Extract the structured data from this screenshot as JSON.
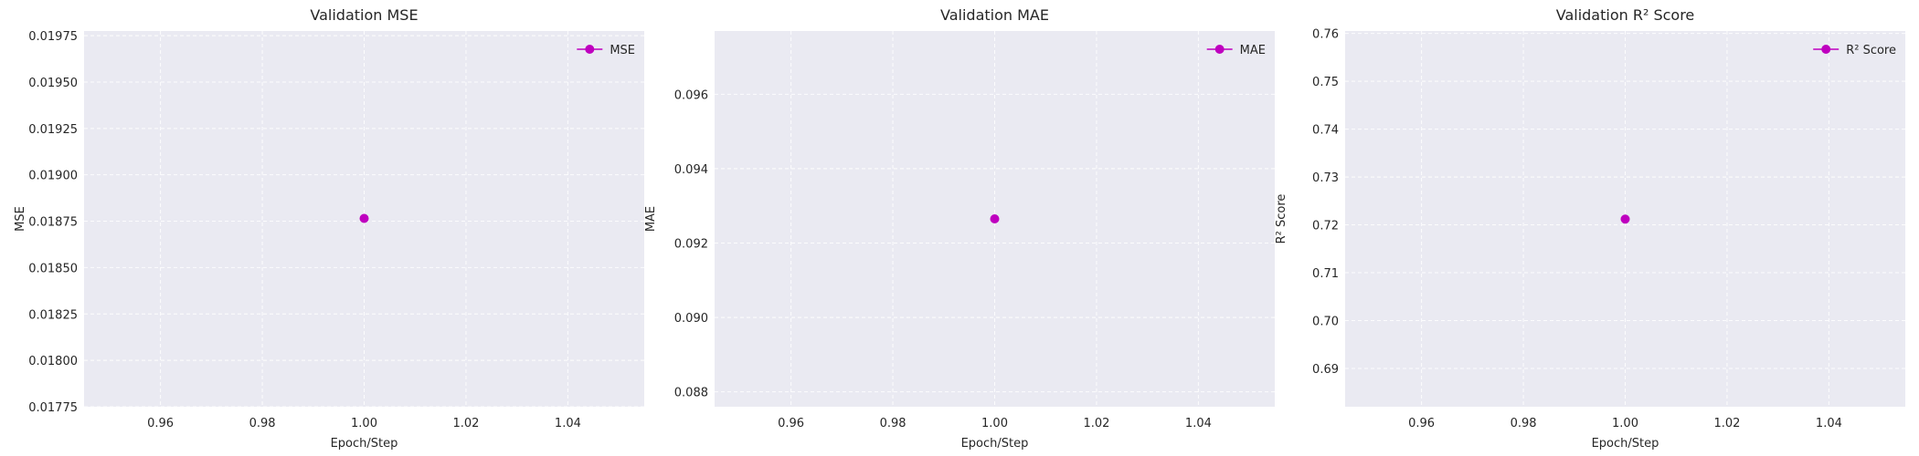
{
  "chart_data": [
    {
      "type": "line",
      "title": "Validation MSE",
      "xlabel": "Epoch/Step",
      "ylabel": "MSE",
      "xlim": [
        0.945,
        1.055
      ],
      "ylim": [
        0.01775,
        0.019775
      ],
      "xticks": [
        "0.96",
        "0.98",
        "1.00",
        "1.02",
        "1.04"
      ],
      "yticks": [
        "0.01775",
        "0.01800",
        "0.01825",
        "0.01850",
        "0.01875",
        "0.01900",
        "0.01925",
        "0.01950",
        "0.01975"
      ],
      "grid": true,
      "legend_position": "top-right",
      "series": [
        {
          "name": "MSE",
          "color": "#bf00bf",
          "marker": "circle",
          "x": [
            1.0
          ],
          "y": [
            0.018765
          ]
        }
      ]
    },
    {
      "type": "line",
      "title": "Validation MAE",
      "xlabel": "Epoch/Step",
      "ylabel": "MAE",
      "xlim": [
        0.945,
        1.055
      ],
      "ylim": [
        0.0876,
        0.0977
      ],
      "xticks": [
        "0.96",
        "0.98",
        "1.00",
        "1.02",
        "1.04"
      ],
      "yticks": [
        "0.088",
        "0.090",
        "0.092",
        "0.094",
        "0.096"
      ],
      "grid": true,
      "legend_position": "top-right",
      "series": [
        {
          "name": "MAE",
          "color": "#bf00bf",
          "marker": "circle",
          "x": [
            1.0
          ],
          "y": [
            0.09265
          ]
        }
      ]
    },
    {
      "type": "line",
      "title": "Validation R² Score",
      "xlabel": "Epoch/Step",
      "ylabel": "R² Score",
      "xlim": [
        0.945,
        1.055
      ],
      "ylim": [
        0.682,
        0.7605
      ],
      "xticks": [
        "0.96",
        "0.98",
        "1.00",
        "1.02",
        "1.04"
      ],
      "yticks": [
        "0.69",
        "0.70",
        "0.71",
        "0.72",
        "0.73",
        "0.74",
        "0.75",
        "0.76"
      ],
      "grid": true,
      "legend_position": "top-right",
      "series": [
        {
          "name": "R² Score",
          "color": "#bf00bf",
          "marker": "circle",
          "x": [
            1.0
          ],
          "y": [
            0.7212
          ]
        }
      ]
    }
  ]
}
